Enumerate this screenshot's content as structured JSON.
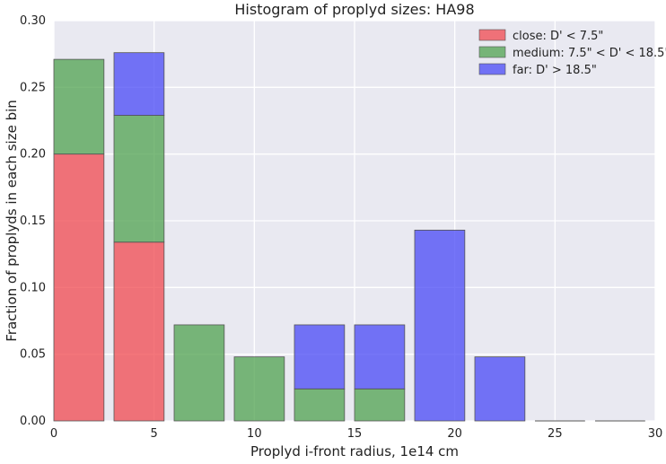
{
  "chart_data": {
    "type": "bar",
    "stacked": true,
    "title": "Histogram of proplyd sizes: HA98",
    "xlabel": "Proplyd i-front radius, 1e14 cm",
    "ylabel": "Fraction of proplyds in each size bin",
    "xlim": [
      0,
      30
    ],
    "ylim": [
      0,
      0.3
    ],
    "xticks": [
      "0",
      "5",
      "10",
      "15",
      "20",
      "25",
      "30"
    ],
    "yticks": [
      "0.00",
      "0.05",
      "0.10",
      "0.15",
      "0.20",
      "0.25",
      "0.30"
    ],
    "bin_width": 3,
    "bar_width": 2.5,
    "bin_starts": [
      0,
      3,
      6,
      9,
      12,
      15,
      18,
      21,
      24,
      27
    ],
    "grid": true,
    "legend_position": "top-right",
    "series": [
      {
        "name": "close: D' < 7.5\"",
        "color": "#f0484f",
        "values": [
          0.2,
          0.134,
          0,
          0,
          0,
          0,
          0,
          0,
          0,
          0
        ]
      },
      {
        "name": "medium: 7.5\" < D' < 18.5\"",
        "color": "#4fa24f",
        "values": [
          0.071,
          0.095,
          0.072,
          0.048,
          0.024,
          0.024,
          0,
          0,
          0,
          0
        ]
      },
      {
        "name": "far: D' > 18.5\"",
        "color": "#4848f5",
        "values": [
          0,
          0.047,
          0,
          0,
          0.048,
          0.048,
          0.143,
          0.048,
          0,
          0
        ]
      }
    ]
  }
}
